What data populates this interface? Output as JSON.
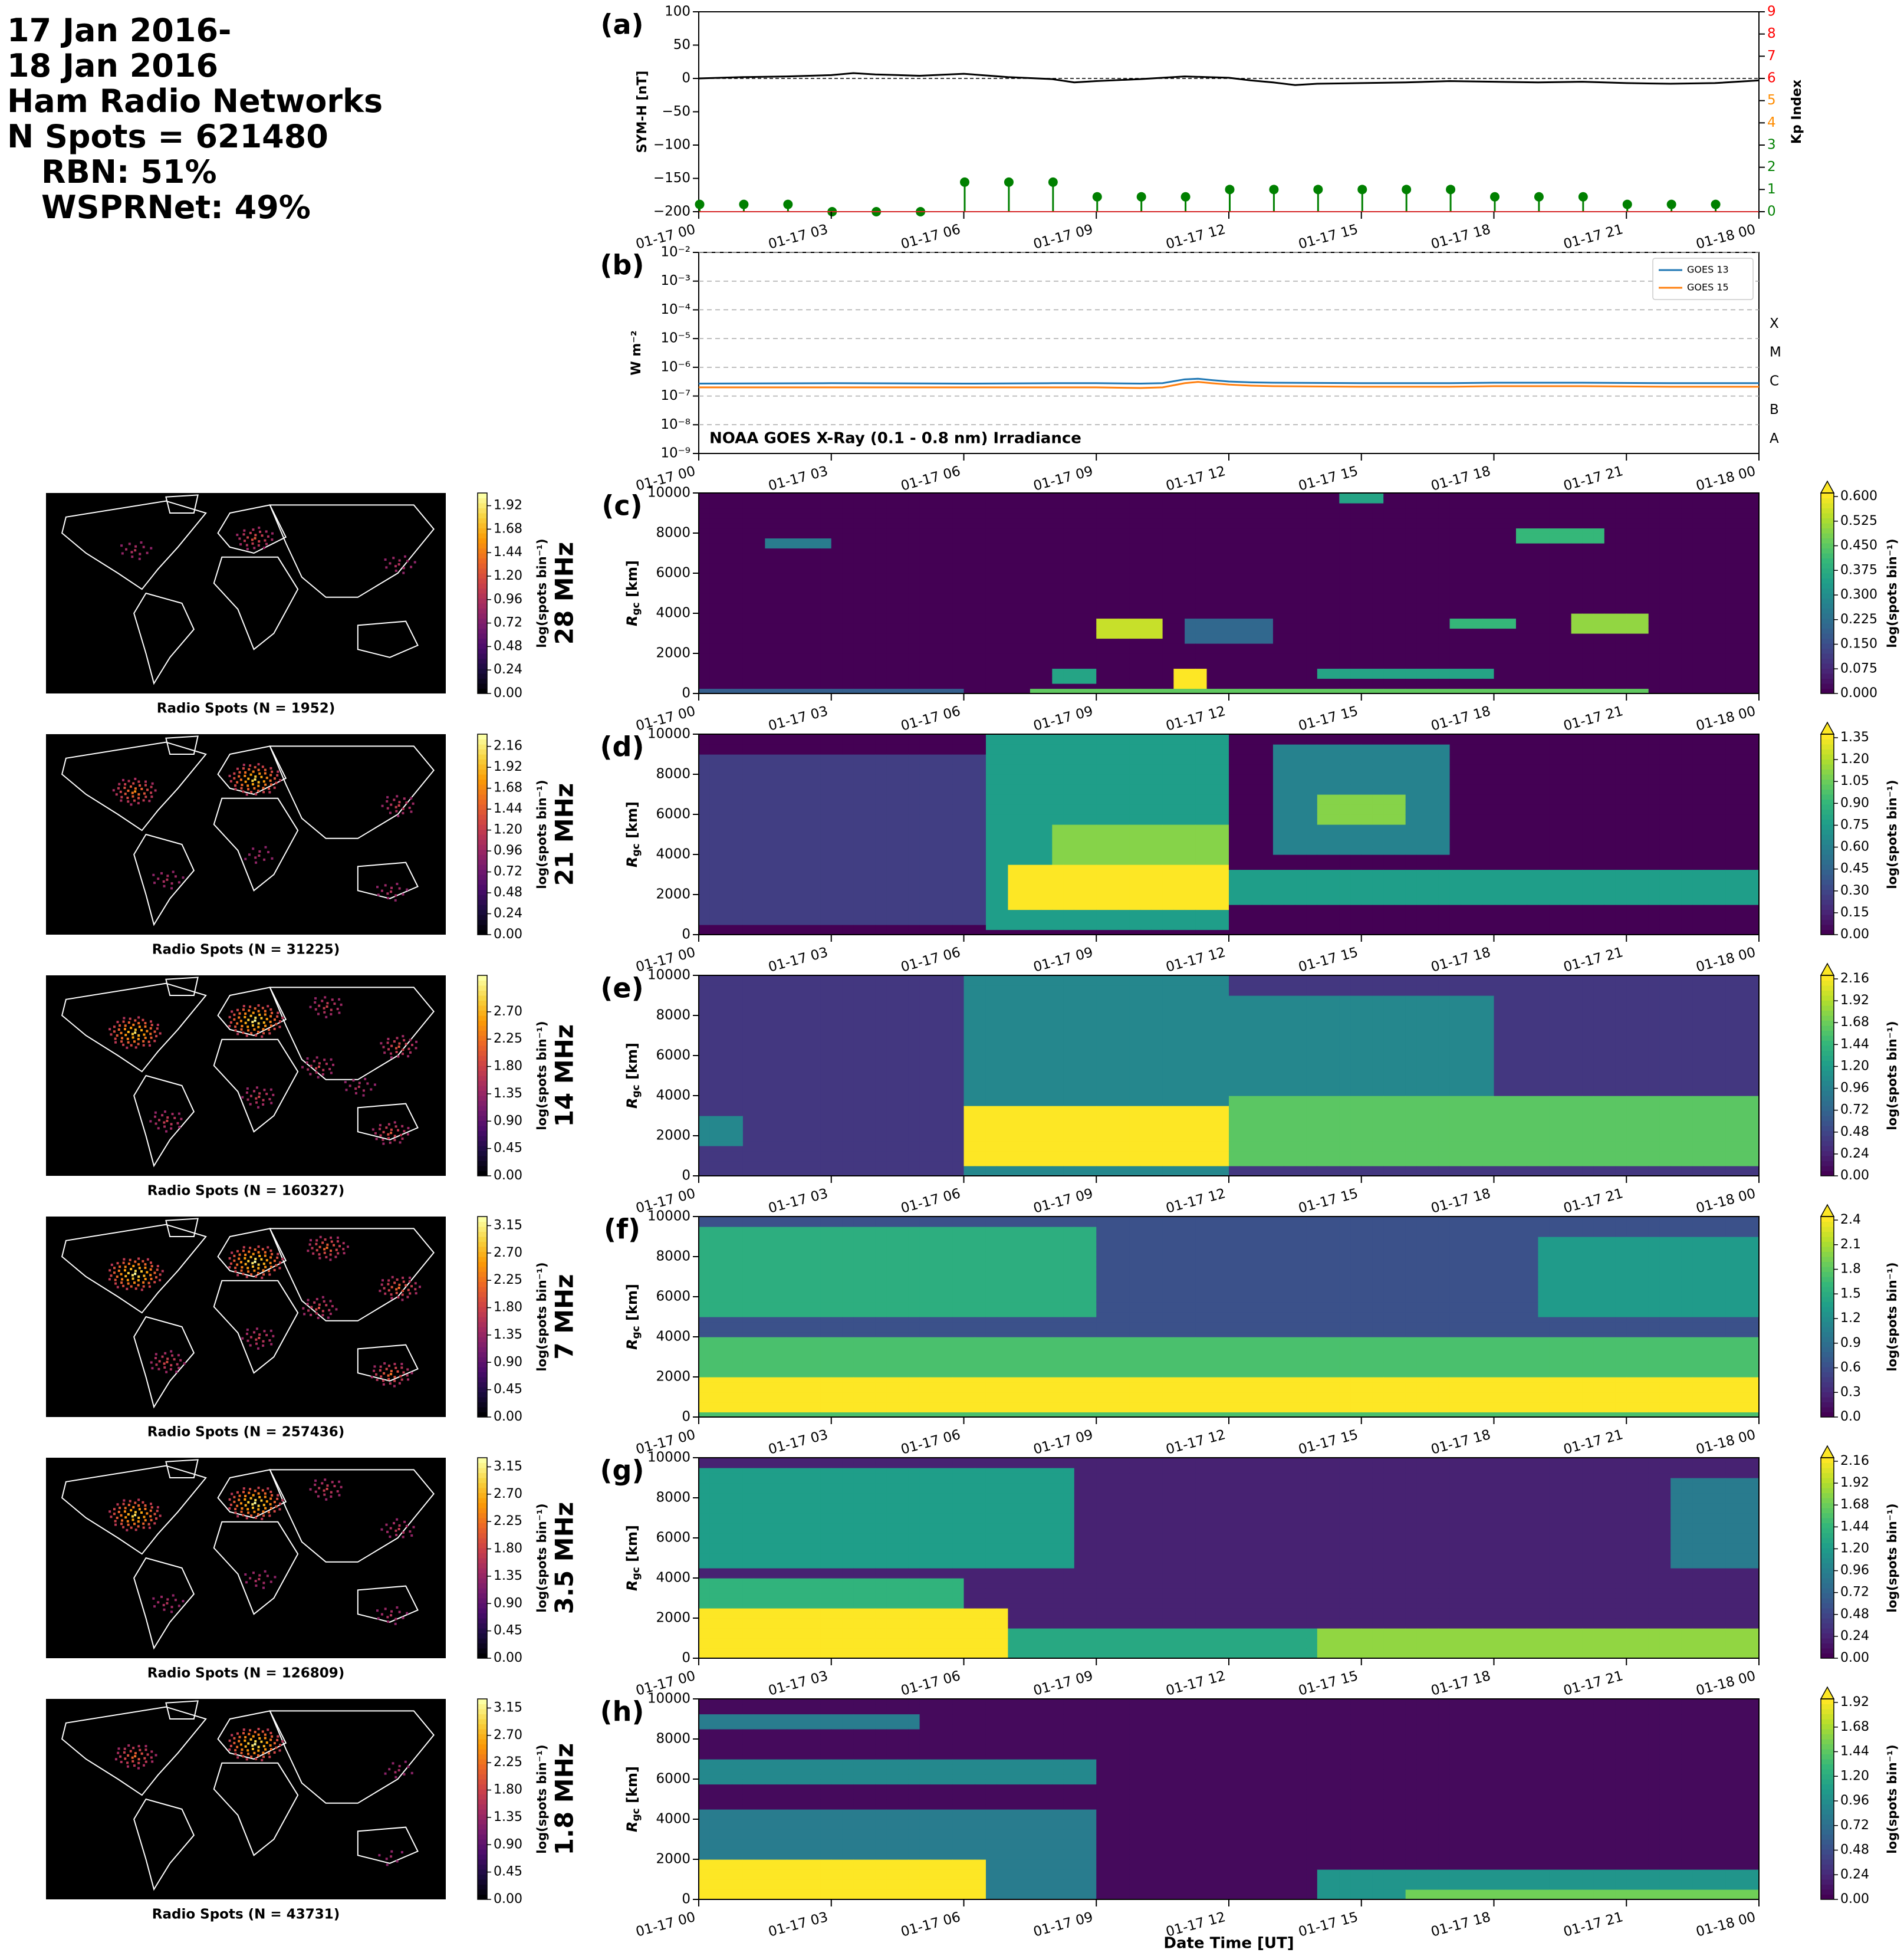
{
  "header": {
    "lines": [
      "17 Jan 2016-",
      "18 Jan 2016",
      "Ham Radio Networks",
      "N Spots = 621480"
    ],
    "sublines": [
      "RBN: 51%",
      "WSPRNet: 49%"
    ]
  },
  "colors": {
    "symh_line": "#000000",
    "kp_stem": "#008000",
    "kp_axis": "#008000",
    "kp_axis_mid": "#ff8c00",
    "kp_axis_high": "#ff0000",
    "goes13": "#1f77b4",
    "goes15": "#ff7f0e",
    "map_background": "#000000",
    "coastline": "#ffffff",
    "viridis": [
      "#440154",
      "#482878",
      "#3e4989",
      "#31688e",
      "#26828e",
      "#1f9e89",
      "#35b779",
      "#6ece58",
      "#b5de2b",
      "#fde725"
    ],
    "inferno": [
      "#000004",
      "#1b0c41",
      "#4a0c6b",
      "#781c6d",
      "#a52c60",
      "#cf4446",
      "#ed6925",
      "#fb9b06",
      "#f7d13d",
      "#fcffa4"
    ]
  },
  "time_ticks": [
    "01-17 00",
    "01-17 03",
    "01-17 06",
    "01-17 09",
    "01-17 12",
    "01-17 15",
    "01-17 18",
    "01-17 21",
    "01-18 00"
  ],
  "x_axis_label": "Date Time [UT]",
  "chart_data": [
    {
      "id": "a",
      "panel_label": "(a)",
      "type": "line",
      "ylabel": "SYM-H [nT]",
      "ylim": [
        -200,
        100
      ],
      "yticks": [
        100,
        50,
        0,
        -50,
        -100,
        -150,
        -200
      ],
      "x_range_hours": [
        0,
        24
      ],
      "series": [
        {
          "x": [
            0,
            1,
            2,
            3,
            3.5,
            4,
            5,
            6,
            7,
            8,
            8.5,
            9,
            10,
            11,
            11.5,
            12,
            12.5,
            13,
            13.5,
            14,
            15,
            16,
            17,
            18,
            19,
            20,
            21,
            22,
            23,
            24
          ],
          "y": [
            0,
            2,
            3,
            5,
            8,
            6,
            4,
            7,
            2,
            -1,
            -6,
            -4,
            -1,
            3,
            2,
            1,
            -3,
            -6,
            -10,
            -8,
            -7,
            -6,
            -4,
            -5,
            -6,
            -5,
            -7,
            -8,
            -7,
            -3
          ]
        }
      ],
      "zero_line": true,
      "right_axis": {
        "ylabel": "Kp Index",
        "ylim": [
          0,
          9
        ],
        "yticks": [
          0,
          1,
          2,
          3,
          4,
          5,
          6,
          7,
          8,
          9
        ],
        "stems": {
          "x": [
            0,
            1,
            2,
            3,
            4,
            5,
            6,
            7,
            8,
            9,
            10,
            11,
            12,
            13,
            14,
            15,
            16,
            17,
            18,
            19,
            20,
            21,
            22,
            23
          ],
          "y": [
            0.33,
            0.33,
            0.33,
            0,
            0,
            0,
            1.33,
            1.33,
            1.33,
            0.67,
            0.67,
            0.67,
            1,
            1,
            1,
            1,
            1,
            1,
            0.67,
            0.67,
            0.67,
            0.33,
            0.33,
            0.33
          ]
        }
      }
    },
    {
      "id": "b",
      "panel_label": "(b)",
      "type": "line",
      "ylabel": "W m⁻²",
      "yscale": "log",
      "ylim_exp": [
        -9,
        -2
      ],
      "ytick_labels": [
        "10⁻²",
        "10⁻³",
        "10⁻⁴",
        "10⁻⁵",
        "10⁻⁶",
        "10⁻⁷",
        "10⁻⁸",
        "10⁻⁹"
      ],
      "flare_classes": [
        {
          "label": "X",
          "exp": -4
        },
        {
          "label": "M",
          "exp": -5
        },
        {
          "label": "C",
          "exp": -6
        },
        {
          "label": "B",
          "exp": -7
        },
        {
          "label": "A",
          "exp": -8
        }
      ],
      "annotation": "NOAA GOES X-Ray (0.1 - 0.8 nm) Irradiance",
      "legend_position": "upper-right",
      "series": [
        {
          "name": "GOES 13",
          "x": [
            0,
            3,
            6,
            8,
            9,
            10,
            10.5,
            11,
            11.3,
            11.6,
            12,
            12.5,
            13,
            15,
            17,
            18,
            20,
            22,
            24
          ],
          "y": [
            2.7e-07,
            2.8e-07,
            2.7e-07,
            2.8e-07,
            2.8e-07,
            2.7e-07,
            2.8e-07,
            3.8e-07,
            4e-07,
            3.6e-07,
            3.2e-07,
            3e-07,
            2.9e-07,
            2.8e-07,
            2.8e-07,
            2.9e-07,
            2.9e-07,
            2.8e-07,
            2.8e-07
          ]
        },
        {
          "name": "GOES 15",
          "x": [
            0,
            3,
            6,
            8,
            9,
            10,
            10.5,
            11,
            11.3,
            11.6,
            12,
            12.5,
            13,
            15,
            17,
            18,
            20,
            22,
            24
          ],
          "y": [
            2e-07,
            2e-07,
            2e-07,
            2e-07,
            2e-07,
            1.9e-07,
            2e-07,
            2.8e-07,
            3.1e-07,
            2.8e-07,
            2.5e-07,
            2.3e-07,
            2.2e-07,
            2.1e-07,
            2.1e-07,
            2.2e-07,
            2.2e-07,
            2.1e-07,
            2.1e-07
          ]
        }
      ]
    },
    {
      "id": "c",
      "panel_label": "(c)",
      "band": "28 MHz",
      "type": "heatmap",
      "ylabel": "R_gc [km]",
      "ylim": [
        0,
        10000
      ],
      "yticks": [
        0,
        2000,
        4000,
        6000,
        8000,
        10000
      ],
      "cbar_label": "log(spots bin⁻¹)",
      "cbar_ticks": [
        "0.000",
        "0.075",
        "0.150",
        "0.225",
        "0.300",
        "0.375",
        "0.450",
        "0.525",
        "0.600"
      ],
      "cbar_max": 0.6,
      "map_label": "Radio Spots (N = 1952)",
      "map_cbar_ticks": [
        "0.00",
        "0.24",
        "0.48",
        "0.72",
        "0.96",
        "1.20",
        "1.44",
        "1.68",
        "1.92"
      ],
      "layers": [
        {
          "t": [
            7.5,
            21.5
          ],
          "r": [
            0,
            150
          ],
          "v": 0.45
        },
        {
          "t": [
            0,
            6
          ],
          "r": [
            0,
            150
          ],
          "v": 0.18
        },
        {
          "t": [
            10.8,
            11.6
          ],
          "r": [
            300,
            1200
          ],
          "v": 0.6
        },
        {
          "t": [
            9,
            10.5
          ],
          "r": [
            2800,
            3700
          ],
          "v": 0.55
        },
        {
          "t": [
            8,
            9
          ],
          "r": [
            600,
            1300
          ],
          "v": 0.35
        },
        {
          "t": [
            14,
            18
          ],
          "r": [
            800,
            1200
          ],
          "v": 0.35
        },
        {
          "t": [
            17,
            18.5
          ],
          "r": [
            3200,
            3800
          ],
          "v": 0.4
        },
        {
          "t": [
            19.8,
            21.5
          ],
          "r": [
            3000,
            4000
          ],
          "v": 0.5
        },
        {
          "t": [
            18.5,
            20.5
          ],
          "r": [
            7400,
            8300
          ],
          "v": 0.4
        },
        {
          "t": [
            14.5,
            15.5
          ],
          "r": [
            9500,
            10000
          ],
          "v": 0.35
        },
        {
          "t": [
            1.5,
            3
          ],
          "r": [
            7300,
            7800
          ],
          "v": 0.25
        },
        {
          "t": [
            11,
            13
          ],
          "r": [
            2600,
            3800
          ],
          "v": 0.2
        }
      ]
    },
    {
      "id": "d",
      "panel_label": "(d)",
      "band": "21 MHz",
      "type": "heatmap",
      "ylabel": "R_gc [km]",
      "ylim": [
        0,
        10000
      ],
      "yticks": [
        0,
        2000,
        4000,
        6000,
        8000,
        10000
      ],
      "cbar_label": "log(spots bin⁻¹)",
      "cbar_ticks": [
        "0.00",
        "0.15",
        "0.30",
        "0.45",
        "0.60",
        "0.75",
        "0.90",
        "1.05",
        "1.20",
        "1.35"
      ],
      "cbar_max": 1.35,
      "map_label": "Radio Spots (N = 31225)",
      "map_cbar_ticks": [
        "0.00",
        "0.24",
        "0.48",
        "0.72",
        "0.96",
        "1.20",
        "1.44",
        "1.68",
        "1.92",
        "2.16"
      ],
      "layers": [
        {
          "t": [
            6.5,
            12
          ],
          "r": [
            200,
            10000
          ],
          "v": 0.75
        },
        {
          "t": [
            7,
            12
          ],
          "r": [
            1200,
            3500
          ],
          "v": 1.35
        },
        {
          "t": [
            8,
            12
          ],
          "r": [
            3500,
            5500
          ],
          "v": 1.1
        },
        {
          "t": [
            12,
            24
          ],
          "r": [
            1500,
            3200
          ],
          "v": 0.75
        },
        {
          "t": [
            13,
            17
          ],
          "r": [
            4000,
            9500
          ],
          "v": 0.6
        },
        {
          "t": [
            14,
            16
          ],
          "r": [
            5500,
            7000
          ],
          "v": 1.1
        },
        {
          "t": [
            0,
            6.5
          ],
          "r": [
            500,
            9000
          ],
          "v": 0.25
        }
      ]
    },
    {
      "id": "e",
      "panel_label": "(e)",
      "band": "14 MHz",
      "type": "heatmap",
      "ylabel": "R_gc [km]",
      "ylim": [
        0,
        10000
      ],
      "yticks": [
        0,
        2000,
        4000,
        6000,
        8000,
        10000
      ],
      "cbar_label": "log(spots bin⁻¹)",
      "cbar_ticks": [
        "0.00",
        "0.24",
        "0.48",
        "0.72",
        "0.96",
        "1.20",
        "1.44",
        "1.68",
        "1.92",
        "2.16"
      ],
      "cbar_max": 2.16,
      "map_label": "Radio Spots (N = 160327)",
      "map_cbar_ticks": [
        "0.00",
        "0.45",
        "0.90",
        "1.35",
        "1.80",
        "2.25",
        "2.70"
      ],
      "layers": [
        {
          "t": [
            0,
            24
          ],
          "r": [
            0,
            10000
          ],
          "v": 0.35
        },
        {
          "t": [
            6,
            12
          ],
          "r": [
            0,
            10000
          ],
          "v": 1.0
        },
        {
          "t": [
            6,
            12
          ],
          "r": [
            500,
            3500
          ],
          "v": 2.16
        },
        {
          "t": [
            12,
            24
          ],
          "r": [
            500,
            4000
          ],
          "v": 1.6
        },
        {
          "t": [
            12,
            18
          ],
          "r": [
            4000,
            9000
          ],
          "v": 1.0
        },
        {
          "t": [
            0,
            1
          ],
          "r": [
            1500,
            3000
          ],
          "v": 1.0
        }
      ]
    },
    {
      "id": "f",
      "panel_label": "(f)",
      "band": "7 MHz",
      "type": "heatmap",
      "ylabel": "R_gc [km]",
      "ylim": [
        0,
        10000
      ],
      "yticks": [
        0,
        2000,
        4000,
        6000,
        8000,
        10000
      ],
      "cbar_label": "log(spots bin⁻¹)",
      "cbar_ticks": [
        "0.0",
        "0.3",
        "0.6",
        "0.9",
        "1.2",
        "1.5",
        "1.8",
        "2.1",
        "2.4"
      ],
      "cbar_max": 2.4,
      "map_label": "Radio Spots (N = 257436)",
      "map_cbar_ticks": [
        "0.00",
        "0.45",
        "0.90",
        "1.35",
        "1.80",
        "2.25",
        "2.70",
        "3.15"
      ],
      "layers": [
        {
          "t": [
            0,
            24
          ],
          "r": [
            0,
            10000
          ],
          "v": 0.6
        },
        {
          "t": [
            0,
            9
          ],
          "r": [
            5000,
            9500
          ],
          "v": 1.5
        },
        {
          "t": [
            0,
            24
          ],
          "r": [
            0,
            4000
          ],
          "v": 1.7
        },
        {
          "t": [
            0,
            24
          ],
          "r": [
            300,
            2000
          ],
          "v": 2.4
        },
        {
          "t": [
            19,
            24
          ],
          "r": [
            5000,
            9000
          ],
          "v": 1.3
        }
      ]
    },
    {
      "id": "g",
      "panel_label": "(g)",
      "band": "3.5 MHz",
      "type": "heatmap",
      "ylabel": "R_gc [km]",
      "ylim": [
        0,
        10000
      ],
      "yticks": [
        0,
        2000,
        4000,
        6000,
        8000,
        10000
      ],
      "cbar_label": "log(spots bin⁻¹)",
      "cbar_ticks": [
        "0.00",
        "0.24",
        "0.48",
        "0.72",
        "0.96",
        "1.20",
        "1.44",
        "1.68",
        "1.92",
        "2.16"
      ],
      "cbar_max": 2.16,
      "map_label": "Radio Spots (N = 126809)",
      "map_cbar_ticks": [
        "0.00",
        "0.45",
        "0.90",
        "1.35",
        "1.80",
        "2.25",
        "2.70",
        "3.15"
      ],
      "layers": [
        {
          "t": [
            0,
            24
          ],
          "r": [
            0,
            10000
          ],
          "v": 0.2
        },
        {
          "t": [
            0,
            8.5
          ],
          "r": [
            4500,
            9500
          ],
          "v": 1.2
        },
        {
          "t": [
            0,
            6
          ],
          "r": [
            0,
            4000
          ],
          "v": 1.4
        },
        {
          "t": [
            0,
            7
          ],
          "r": [
            0,
            2500
          ],
          "v": 2.16
        },
        {
          "t": [
            7,
            14
          ],
          "r": [
            0,
            1500
          ],
          "v": 1.3
        },
        {
          "t": [
            14,
            24
          ],
          "r": [
            0,
            1500
          ],
          "v": 1.8
        },
        {
          "t": [
            22,
            24
          ],
          "r": [
            4500,
            9000
          ],
          "v": 0.9
        }
      ]
    },
    {
      "id": "h",
      "panel_label": "(h)",
      "band": "1.8 MHz",
      "type": "heatmap",
      "ylabel": "R_gc [km]",
      "ylim": [
        0,
        10000
      ],
      "yticks": [
        0,
        2000,
        4000,
        6000,
        8000,
        10000
      ],
      "cbar_label": "log(spots bin⁻¹)",
      "cbar_ticks": [
        "0.00",
        "0.24",
        "0.48",
        "0.72",
        "0.96",
        "1.20",
        "1.44",
        "1.68",
        "1.92"
      ],
      "cbar_max": 1.92,
      "map_label": "Radio Spots (N = 43731)",
      "map_cbar_ticks": [
        "0.00",
        "0.45",
        "0.90",
        "1.35",
        "1.80",
        "2.25",
        "2.70",
        "3.15"
      ],
      "layers": [
        {
          "t": [
            0,
            24
          ],
          "r": [
            0,
            10000
          ],
          "v": 0.05
        },
        {
          "t": [
            0,
            9
          ],
          "r": [
            0,
            4500
          ],
          "v": 0.8
        },
        {
          "t": [
            0,
            6.5
          ],
          "r": [
            0,
            2000
          ],
          "v": 1.92
        },
        {
          "t": [
            0,
            9
          ],
          "r": [
            5800,
            7000
          ],
          "v": 0.9
        },
        {
          "t": [
            0,
            5
          ],
          "r": [
            8500,
            9200
          ],
          "v": 0.8
        },
        {
          "t": [
            14,
            24
          ],
          "r": [
            0,
            1500
          ],
          "v": 1.0
        },
        {
          "t": [
            16,
            24
          ],
          "r": [
            0,
            600
          ],
          "v": 1.5
        }
      ]
    }
  ]
}
